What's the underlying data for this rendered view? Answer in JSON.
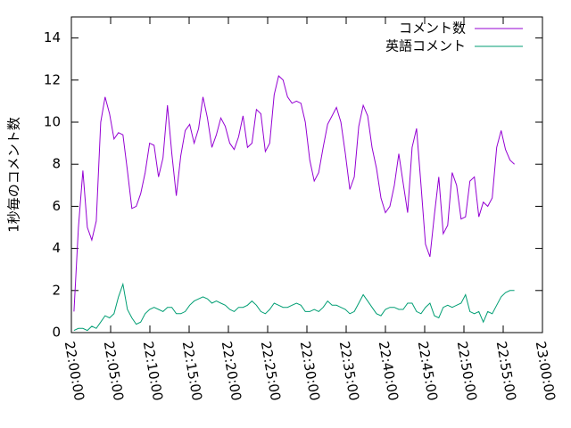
{
  "chart_data": {
    "type": "line",
    "ylabel": "1秒毎のコメント数",
    "xlim": [
      "22:00:00",
      "23:00:00"
    ],
    "xticks": [
      "22:00:00",
      "22:05:00",
      "22:10:00",
      "22:15:00",
      "22:20:00",
      "22:25:00",
      "22:30:00",
      "22:35:00",
      "22:40:00",
      "22:45:00",
      "22:50:00",
      "22:55:00",
      "23:00:00"
    ],
    "ylim": [
      0,
      15
    ],
    "yticks": [
      0,
      2,
      4,
      6,
      8,
      10,
      12,
      14
    ],
    "grid": false,
    "legend": "top-right",
    "x": [
      "22:00:20",
      "22:00:54",
      "22:01:28",
      "22:02:02",
      "22:02:36",
      "22:03:10",
      "22:03:44",
      "22:04:18",
      "22:04:52",
      "22:05:26",
      "22:06:00",
      "22:06:34",
      "22:07:08",
      "22:07:42",
      "22:08:16",
      "22:08:50",
      "22:09:24",
      "22:09:58",
      "22:10:32",
      "22:11:06",
      "22:11:40",
      "22:12:14",
      "22:12:48",
      "22:13:22",
      "22:13:56",
      "22:14:30",
      "22:15:04",
      "22:15:38",
      "22:16:12",
      "22:16:46",
      "22:17:20",
      "22:17:54",
      "22:18:28",
      "22:19:02",
      "22:19:36",
      "22:20:10",
      "22:20:44",
      "22:21:18",
      "22:21:52",
      "22:22:26",
      "22:23:00",
      "22:23:34",
      "22:24:08",
      "22:24:42",
      "22:25:16",
      "22:25:50",
      "22:26:24",
      "22:26:58",
      "22:27:32",
      "22:28:06",
      "22:28:40",
      "22:29:14",
      "22:29:48",
      "22:30:22",
      "22:30:56",
      "22:31:30",
      "22:32:04",
      "22:32:38",
      "22:33:12",
      "22:33:46",
      "22:34:20",
      "22:34:54",
      "22:35:28",
      "22:36:02",
      "22:36:36",
      "22:37:10",
      "22:37:44",
      "22:38:18",
      "22:38:52",
      "22:39:26",
      "22:40:00",
      "22:40:34",
      "22:41:08",
      "22:41:42",
      "22:42:16",
      "22:42:50",
      "22:43:24",
      "22:43:58",
      "22:44:32",
      "22:45:06",
      "22:45:40",
      "22:46:14",
      "22:46:48",
      "22:47:22",
      "22:47:56",
      "22:48:30",
      "22:49:04",
      "22:49:38",
      "22:50:12",
      "22:50:46",
      "22:51:20",
      "22:51:54",
      "22:52:28",
      "22:53:02",
      "22:53:36",
      "22:54:10",
      "22:54:44",
      "22:55:18",
      "22:55:52",
      "22:56:26"
    ],
    "series": [
      {
        "name": "コメント数",
        "color": "#9400d3",
        "values": [
          1.0,
          5.0,
          7.7,
          5.0,
          4.4,
          5.3,
          10.0,
          11.2,
          10.4,
          9.2,
          9.5,
          9.4,
          7.7,
          5.9,
          6.0,
          6.6,
          7.6,
          9.0,
          8.9,
          7.4,
          8.3,
          10.8,
          8.5,
          6.5,
          8.4,
          9.6,
          9.9,
          9.0,
          9.7,
          11.2,
          10.2,
          8.8,
          9.4,
          10.2,
          9.8,
          9.0,
          8.7,
          9.3,
          10.3,
          8.8,
          9.0,
          10.6,
          10.4,
          8.6,
          9.0,
          11.3,
          12.2,
          12.0,
          11.2,
          10.9,
          11.0,
          10.9,
          10.0,
          8.2,
          7.2,
          7.6,
          8.8,
          9.9,
          10.3,
          10.7,
          10.0,
          8.5,
          6.8,
          7.4,
          9.8,
          10.8,
          10.3,
          8.8,
          7.8,
          6.4,
          5.7,
          6.0,
          7.0,
          8.5,
          7.1,
          5.7,
          8.8,
          9.7,
          7.0,
          4.2,
          3.6,
          5.6,
          7.4,
          4.7,
          5.1,
          7.6,
          7.0,
          5.4,
          5.5,
          7.2,
          7.4,
          5.5,
          6.2,
          6.0,
          6.4,
          8.8,
          9.6,
          8.7,
          8.2,
          8.0
        ]
      },
      {
        "name": "英語コメント",
        "color": "#009e73",
        "values": [
          0.1,
          0.2,
          0.2,
          0.1,
          0.3,
          0.2,
          0.5,
          0.8,
          0.7,
          0.9,
          1.7,
          2.3,
          1.1,
          0.7,
          0.4,
          0.5,
          0.9,
          1.1,
          1.2,
          1.1,
          1.0,
          1.2,
          1.2,
          0.9,
          0.9,
          1.0,
          1.3,
          1.5,
          1.6,
          1.7,
          1.6,
          1.4,
          1.5,
          1.4,
          1.3,
          1.1,
          1.0,
          1.2,
          1.2,
          1.3,
          1.5,
          1.3,
          1.0,
          0.9,
          1.1,
          1.4,
          1.3,
          1.2,
          1.2,
          1.3,
          1.4,
          1.3,
          1.0,
          1.0,
          1.1,
          1.0,
          1.2,
          1.5,
          1.3,
          1.3,
          1.2,
          1.1,
          0.9,
          1.0,
          1.4,
          1.8,
          1.5,
          1.2,
          0.9,
          0.8,
          1.1,
          1.2,
          1.2,
          1.1,
          1.1,
          1.4,
          1.4,
          1.0,
          0.9,
          1.2,
          1.4,
          0.8,
          0.7,
          1.2,
          1.3,
          1.2,
          1.3,
          1.4,
          1.8,
          1.0,
          0.9,
          1.0,
          0.5,
          1.0,
          0.9,
          1.3,
          1.7,
          1.9,
          2.0,
          2.0
        ]
      }
    ]
  }
}
